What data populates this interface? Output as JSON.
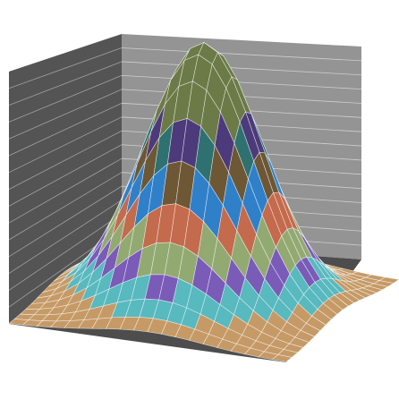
{
  "chart_data": {
    "type": "surface",
    "title": "",
    "xlabel": "",
    "ylabel": "",
    "zlabel": "",
    "grid": true,
    "legend": "none",
    "z_function": "gaussian-dome",
    "zlim": [
      0,
      1
    ],
    "band_count": 12,
    "band_colors": [
      "#c69a66",
      "#58b9bf",
      "#7a5bb8",
      "#93a972",
      "#c46a4d",
      "#2f80c9",
      "#6d5734",
      "#2f7170",
      "#4c3a7a",
      "#6b7a47",
      "#6b7a47",
      "#6b7a47"
    ],
    "colors": {
      "back_wall": "#949494",
      "side_wall": "#545454",
      "floor": "#4d4d4d",
      "grid_line": "#ffffff",
      "mesh_line": "#ffffff"
    }
  }
}
